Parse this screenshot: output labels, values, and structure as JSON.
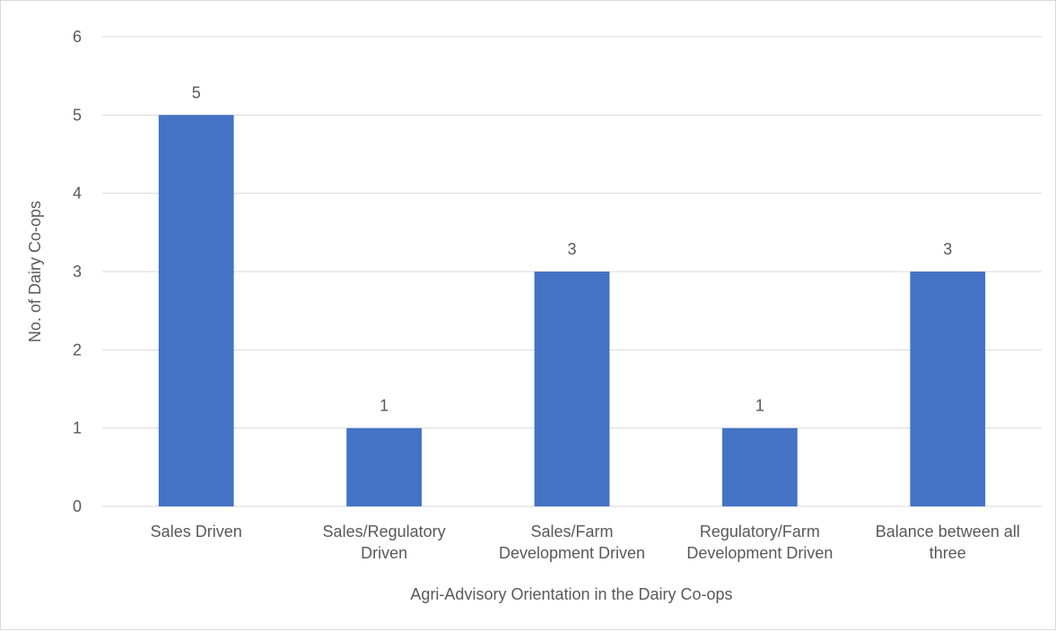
{
  "chart_data": {
    "type": "bar",
    "title": "",
    "xlabel": "Agri-Advisory Orientation in the Dairy Co-ops",
    "ylabel": "No. of Dairy Co-ops",
    "categories": [
      [
        "Sales Driven"
      ],
      [
        "Sales/Regulatory",
        "Driven"
      ],
      [
        "Sales/Farm",
        "Development Driven"
      ],
      [
        "Regulatory/Farm",
        "Development Driven"
      ],
      [
        "Balance between all",
        "three"
      ]
    ],
    "series": [
      {
        "values": [
          5,
          1,
          3,
          1,
          3
        ],
        "color": "#4472c4"
      }
    ],
    "ylim": [
      0,
      6
    ],
    "yticks": [
      0,
      1,
      2,
      3,
      4,
      5,
      6
    ],
    "grid": true,
    "legend": "none",
    "data_labels": true
  },
  "colors": {
    "gridline": "#d9d9d9",
    "text": "#595959",
    "bar": "#4472c4"
  }
}
